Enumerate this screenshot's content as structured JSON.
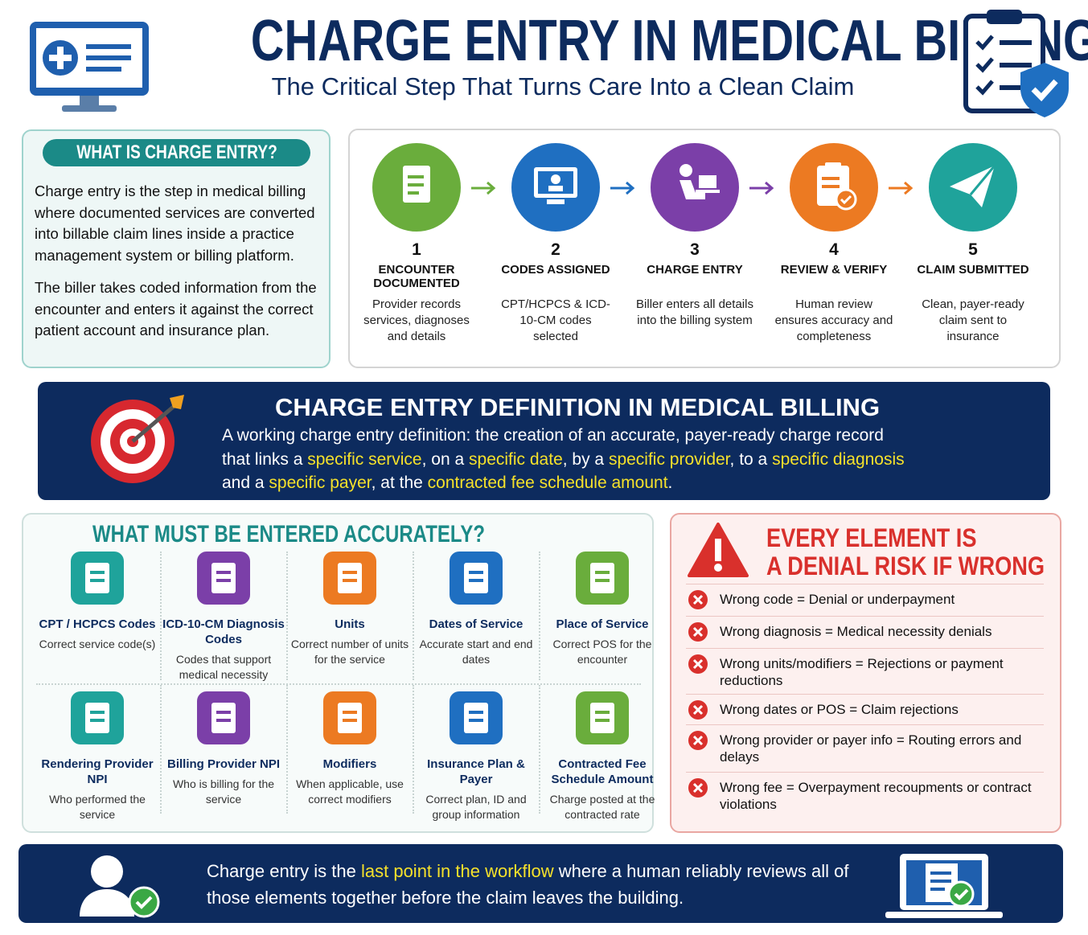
{
  "header": {
    "title": "CHARGE ENTRY IN MEDICAL BILLING",
    "subtitle": "The Critical Step That Turns Care Into a Clean Claim"
  },
  "what_is": {
    "heading": "WHAT IS CHARGE ENTRY?",
    "paragraphs": [
      "Charge entry is the step in medical billing where documented services are converted into billable claim lines inside a practice management system or billing platform.",
      "The biller takes coded information from the encounter and enters it against the correct patient account and insurance plan."
    ]
  },
  "steps": [
    {
      "number": 1,
      "title": "ENCOUNTER DOCUMENTED",
      "description": "Provider records services, diagnoses and details"
    },
    {
      "number": 2,
      "title": "CODES ASSIGNED",
      "description": "CPT/HCPCS & ICD-10-CM codes selected"
    },
    {
      "number": 3,
      "title": "CHARGE ENTRY",
      "description": "Biller enters all details into the billing system"
    },
    {
      "number": 4,
      "title": "REVIEW & VERIFY",
      "description": "Human review ensures accuracy and completeness"
    },
    {
      "number": 5,
      "title": "CLAIM SUBMITTED",
      "description": "Clean, payer-ready claim sent to insurance"
    }
  ],
  "definition": {
    "heading": "CHARGE ENTRY DEFINITION IN MEDICAL BILLING",
    "segments": [
      {
        "text": "A working charge entry definition: the creation of an accurate, payer-ready charge record that links a ",
        "highlight": false
      },
      {
        "text": "specific service",
        "highlight": true
      },
      {
        "text": ", on a ",
        "highlight": false
      },
      {
        "text": "specific date",
        "highlight": true
      },
      {
        "text": ", by a ",
        "highlight": false
      },
      {
        "text": "specific provider",
        "highlight": true
      },
      {
        "text": ", to a ",
        "highlight": false
      },
      {
        "text": "specific diagnosis",
        "highlight": true
      },
      {
        "text": " and a ",
        "highlight": false
      },
      {
        "text": "specific payer",
        "highlight": true
      },
      {
        "text": ", at the ",
        "highlight": false
      },
      {
        "text": "contracted fee schedule amount",
        "highlight": true
      },
      {
        "text": ".",
        "highlight": false
      }
    ]
  },
  "fields": {
    "heading": "WHAT MUST BE ENTERED ACCURATELY?",
    "items": [
      {
        "title": "CPT / HCPCS Codes",
        "description": "Correct service code(s)"
      },
      {
        "title": "ICD-10-CM Diagnosis Codes",
        "description": "Codes that support medical necessity"
      },
      {
        "title": "Units",
        "description": "Correct number of units for the service"
      },
      {
        "title": "Dates of Service",
        "description": "Accurate start and end dates"
      },
      {
        "title": "Place of Service",
        "description": "Correct POS for the encounter"
      },
      {
        "title": "Rendering Provider NPI",
        "description": "Who performed the service"
      },
      {
        "title": "Billing Provider NPI",
        "description": "Who is billing for the service"
      },
      {
        "title": "Modifiers",
        "description": "When applicable, use correct modifiers"
      },
      {
        "title": "Insurance Plan & Payer",
        "description": "Correct plan, ID and group information"
      },
      {
        "title": "Contracted Fee Schedule Amount",
        "description": "Charge posted at the contracted rate"
      }
    ]
  },
  "risks": {
    "heading_lines": [
      "EVERY ELEMENT IS",
      "A DENIAL RISK IF WRONG"
    ],
    "items": [
      "Wrong code = Denial or underpayment",
      "Wrong diagnosis = Medical necessity denials",
      "Wrong units/modifiers = Rejections or payment reductions",
      "Wrong dates or POS = Claim rejections",
      "Wrong provider or payer info = Routing errors and delays",
      "Wrong fee = Overpayment recoupments or contract violations"
    ]
  },
  "footer": {
    "segments": [
      {
        "text": "Charge entry is the ",
        "highlight": false
      },
      {
        "text": "last point in the workflow",
        "highlight": true
      },
      {
        "text": " where a human reliably reviews all of those elements together before the claim leaves the building.",
        "highlight": false
      }
    ]
  }
}
